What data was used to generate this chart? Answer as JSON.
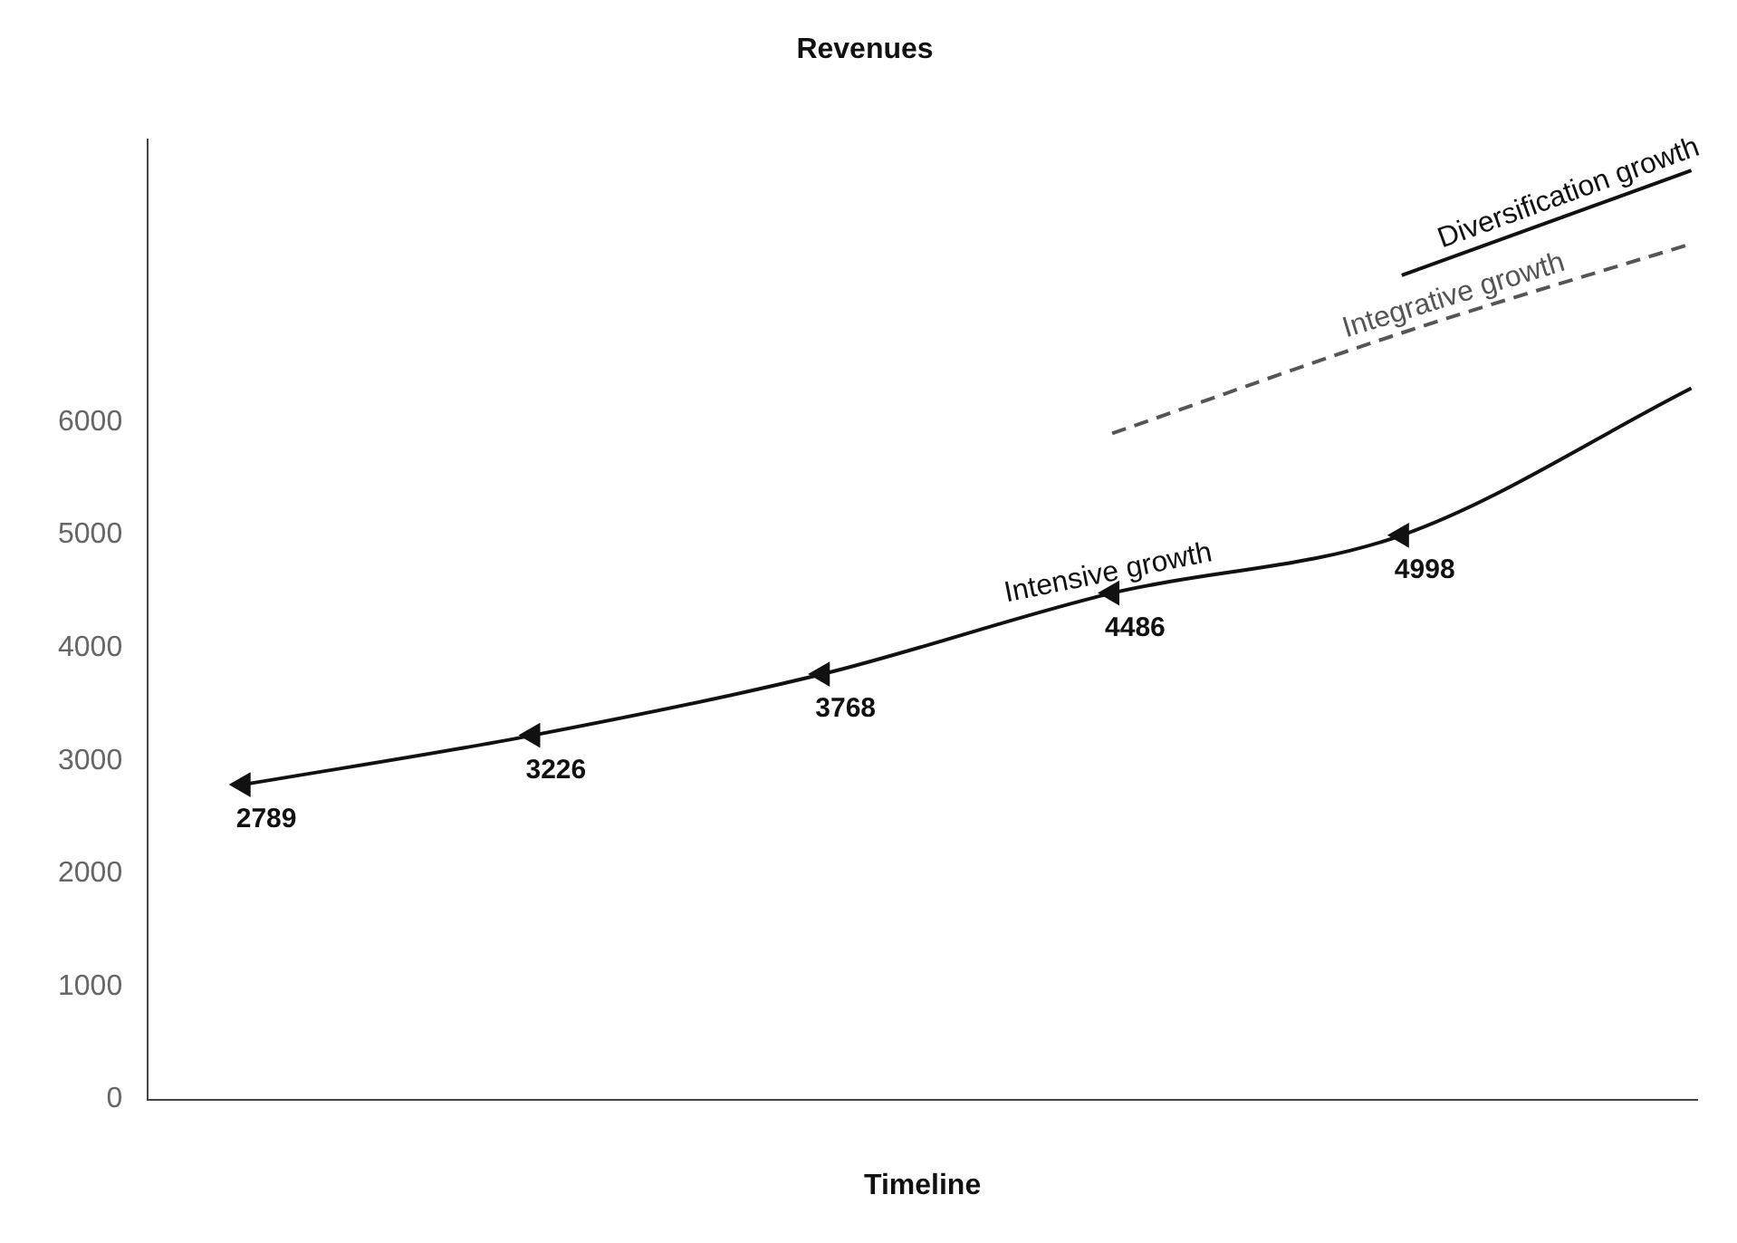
{
  "chart_data": {
    "type": "line",
    "title": "Revenues",
    "xlabel": "Timeline",
    "categories": [
      null,
      null,
      null,
      null,
      null,
      null
    ],
    "series": [
      {
        "name": "Intensive growth",
        "color": "#111111",
        "marker": "triangle",
        "line_style": "solid",
        "values": [
          2789,
          3226,
          3768,
          4486,
          4998,
          6300
        ],
        "value_labels": [
          "2789",
          "3226",
          "3768",
          "4486",
          "4998",
          null
        ]
      },
      {
        "name": "Integrative growth",
        "color": "#555555",
        "marker": "none",
        "line_style": "dashed",
        "values": [
          null,
          null,
          null,
          5900,
          6790,
          7580
        ]
      },
      {
        "name": "Diversification growth",
        "color": "#111111",
        "marker": "none",
        "line_style": "solid",
        "values": [
          null,
          null,
          null,
          null,
          7300,
          8230
        ]
      }
    ],
    "ylim": [
      0,
      8500
    ],
    "yticks": [
      0,
      1000,
      2000,
      3000,
      4000,
      5000,
      6000
    ],
    "grid": false,
    "legend": false
  }
}
